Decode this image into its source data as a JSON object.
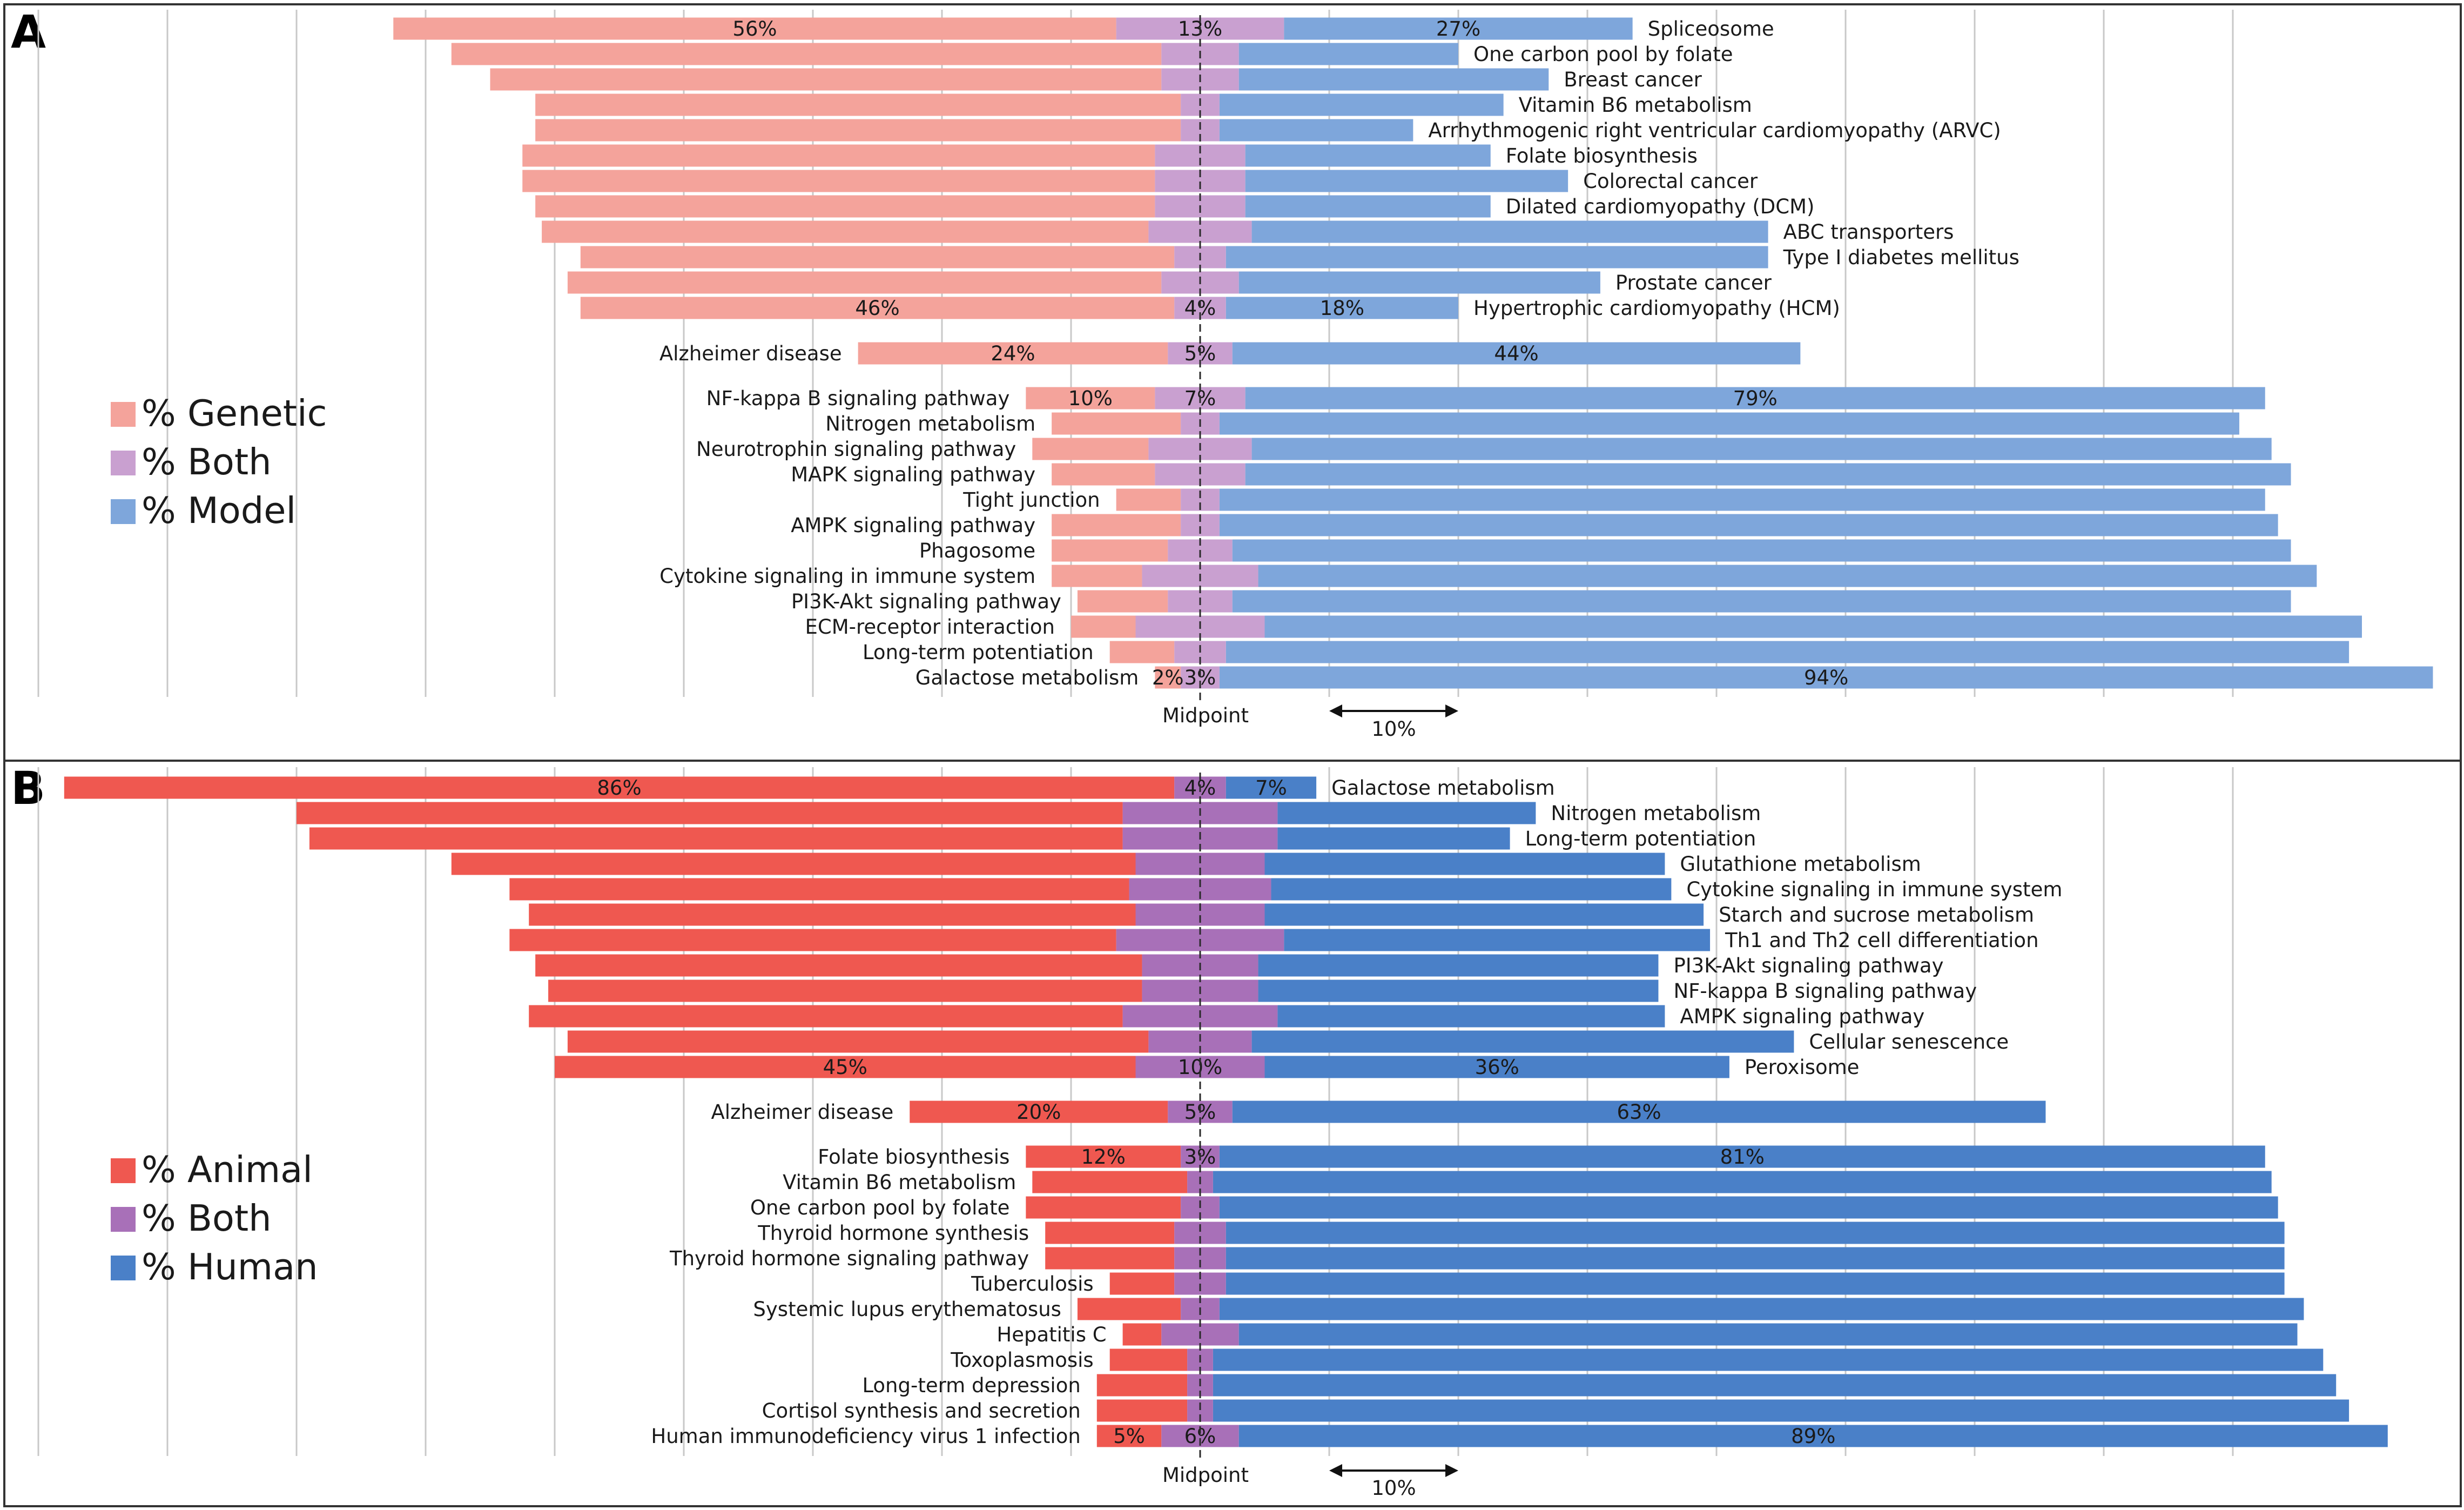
{
  "chart_data": [
    {
      "type": "bar",
      "panel": "A",
      "orientation": "horizontal-diverging",
      "midpoint_label": "Midpoint",
      "scale_label": "10%",
      "legend_placement": "left",
      "legend": [
        {
          "key": "genetic",
          "label": "% Genetic",
          "color": "#f4a39b"
        },
        {
          "key": "both",
          "label": "% Both",
          "color": "#c9a0d0"
        },
        {
          "key": "model",
          "label": "% Model",
          "color": "#7ea6db"
        }
      ],
      "groups": [
        {
          "name": "genetic-dominant",
          "rows": [
            {
              "category": "Spliceosome",
              "genetic": 56,
              "both": 13,
              "model": 27,
              "labels": [
                "56%",
                "13%",
                "27%"
              ]
            },
            {
              "category": "One carbon pool by folate",
              "genetic": 55,
              "both": 6,
              "model": 17,
              "labels": null
            },
            {
              "category": "Breast cancer",
              "genetic": 52,
              "both": 6,
              "model": 24,
              "labels": null
            },
            {
              "category": "Vitamin B6 metabolism",
              "genetic": 50,
              "both": 3,
              "model": 22,
              "labels": null
            },
            {
              "category": "Arrhythmogenic right ventricular cardiomyopathy (ARVC)",
              "genetic": 50,
              "both": 3,
              "model": 15,
              "labels": null
            },
            {
              "category": "Folate biosynthesis",
              "genetic": 49,
              "both": 7,
              "model": 19,
              "labels": null
            },
            {
              "category": "Colorectal cancer",
              "genetic": 49,
              "both": 7,
              "model": 25,
              "labels": null
            },
            {
              "category": "Dilated cardiomyopathy (DCM)",
              "genetic": 48,
              "both": 7,
              "model": 19,
              "labels": null
            },
            {
              "category": "ABC transporters",
              "genetic": 47,
              "both": 8,
              "model": 40,
              "labels": null
            },
            {
              "category": "Type I diabetes mellitus",
              "genetic": 46,
              "both": 4,
              "model": 42,
              "labels": null
            },
            {
              "category": "Prostate cancer",
              "genetic": 46,
              "both": 6,
              "model": 28,
              "labels": null
            },
            {
              "category": "Hypertrophic cardiomyopathy (HCM)",
              "genetic": 46,
              "both": 4,
              "model": 18,
              "labels": [
                "46%",
                "4%",
                "18%"
              ]
            }
          ]
        },
        {
          "name": "middle",
          "rows": [
            {
              "category": "Alzheimer disease",
              "genetic": 24,
              "both": 5,
              "model": 44,
              "labels": [
                "24%",
                "5%",
                "44%"
              ]
            }
          ]
        },
        {
          "name": "model-dominant",
          "rows": [
            {
              "category": "NF-kappa B signaling pathway",
              "genetic": 10,
              "both": 7,
              "model": 79,
              "labels": [
                "10%",
                "7%",
                "79%"
              ]
            },
            {
              "category": "Nitrogen metabolism",
              "genetic": 10,
              "both": 3,
              "model": 79,
              "labels": null
            },
            {
              "category": "Neurotrophin signaling pathway",
              "genetic": 9,
              "both": 8,
              "model": 79,
              "labels": null
            },
            {
              "category": "MAPK signaling pathway",
              "genetic": 8,
              "both": 7,
              "model": 81,
              "labels": null
            },
            {
              "category": "Tight junction",
              "genetic": 5,
              "both": 3,
              "model": 81,
              "labels": null
            },
            {
              "category": "AMPK signaling pathway",
              "genetic": 10,
              "both": 3,
              "model": 82,
              "labels": null
            },
            {
              "category": "Phagosome",
              "genetic": 9,
              "both": 5,
              "model": 82,
              "labels": null
            },
            {
              "category": "Cytokine signaling in immune system",
              "genetic": 7,
              "both": 9,
              "model": 82,
              "labels": null
            },
            {
              "category": "PI3K-Akt signaling pathway",
              "genetic": 7,
              "both": 5,
              "model": 82,
              "labels": null
            },
            {
              "category": "ECM-receptor interaction",
              "genetic": 5,
              "both": 10,
              "model": 85,
              "labels": null
            },
            {
              "category": "Long-term potentiation",
              "genetic": 5,
              "both": 4,
              "model": 87,
              "labels": null
            },
            {
              "category": "Galactose metabolism",
              "genetic": 2,
              "both": 3,
              "model": 94,
              "labels": [
                "2%",
                "3%",
                "94%"
              ]
            }
          ]
        }
      ]
    },
    {
      "type": "bar",
      "panel": "B",
      "orientation": "horizontal-diverging",
      "midpoint_label": "Midpoint",
      "scale_label": "10%",
      "legend_placement": "left",
      "legend": [
        {
          "key": "animal",
          "label": "% Animal",
          "color": "#ef5850"
        },
        {
          "key": "both",
          "label": "% Both",
          "color": "#a870b8"
        },
        {
          "key": "human",
          "label": "% Human",
          "color": "#4a80c8"
        }
      ],
      "groups": [
        {
          "name": "animal-dominant",
          "rows": [
            {
              "category": "Galactose metabolism",
              "animal": 86,
              "both": 4,
              "human": 7,
              "labels": [
                "86%",
                "4%",
                "7%"
              ]
            },
            {
              "category": "Nitrogen metabolism",
              "animal": 64,
              "both": 12,
              "human": 20,
              "labels": null
            },
            {
              "category": "Long-term potentiation",
              "animal": 63,
              "both": 12,
              "human": 18,
              "labels": null
            },
            {
              "category": "Glutathione metabolism",
              "animal": 53,
              "both": 10,
              "human": 31,
              "labels": null
            },
            {
              "category": "Cytokine signaling in immune system",
              "animal": 48,
              "both": 11,
              "human": 31,
              "labels": null
            },
            {
              "category": "Starch and sucrose metabolism",
              "animal": 47,
              "both": 10,
              "human": 34,
              "labels": null
            },
            {
              "category": "Th1 and Th2 cell differentiation",
              "animal": 47,
              "both": 13,
              "human": 33,
              "labels": null
            },
            {
              "category": "PI3K-Akt signaling pathway",
              "animal": 47,
              "both": 9,
              "human": 31,
              "labels": null
            },
            {
              "category": "NF-kappa B signaling pathway",
              "animal": 46,
              "both": 9,
              "human": 31,
              "labels": null
            },
            {
              "category": "AMPK signaling pathway",
              "animal": 46,
              "both": 12,
              "human": 30,
              "labels": null
            },
            {
              "category": "Cellular senescence",
              "animal": 45,
              "both": 8,
              "human": 42,
              "labels": null
            },
            {
              "category": "Peroxisome",
              "animal": 45,
              "both": 10,
              "human": 36,
              "labels": [
                "45%",
                "10%",
                "36%"
              ]
            }
          ]
        },
        {
          "name": "middle",
          "rows": [
            {
              "category": "Alzheimer disease",
              "animal": 20,
              "both": 5,
              "human": 63,
              "labels": [
                "20%",
                "5%",
                "63%"
              ]
            }
          ]
        },
        {
          "name": "human-dominant",
          "rows": [
            {
              "category": "Folate biosynthesis",
              "animal": 12,
              "both": 3,
              "human": 81,
              "labels": [
                "12%",
                "3%",
                "81%"
              ]
            },
            {
              "category": "Vitamin B6 metabolism",
              "animal": 12,
              "both": 2,
              "human": 82,
              "labels": null
            },
            {
              "category": "One carbon pool by folate",
              "animal": 12,
              "both": 3,
              "human": 82,
              "labels": null
            },
            {
              "category": "Thyroid hormone synthesis",
              "animal": 10,
              "both": 4,
              "human": 82,
              "labels": null
            },
            {
              "category": "Thyroid hormone signaling pathway",
              "animal": 10,
              "both": 4,
              "human": 82,
              "labels": null
            },
            {
              "category": "Tuberculosis",
              "animal": 5,
              "both": 4,
              "human": 82,
              "labels": null
            },
            {
              "category": "Systemic lupus erythematosus",
              "animal": 8,
              "both": 3,
              "human": 84,
              "labels": null
            },
            {
              "category": "Hepatitis C",
              "animal": 3,
              "both": 6,
              "human": 82,
              "labels": null
            },
            {
              "category": "Toxoplasmosis",
              "animal": 6,
              "both": 2,
              "human": 86,
              "labels": null
            },
            {
              "category": "Long-term depression",
              "animal": 7,
              "both": 2,
              "human": 87,
              "labels": null
            },
            {
              "category": "Cortisol synthesis and secretion",
              "animal": 7,
              "both": 2,
              "human": 88,
              "labels": null
            },
            {
              "category": "Human immunodeficiency virus 1 infection",
              "animal": 5,
              "both": 6,
              "human": 89,
              "labels": [
                "5%",
                "6%",
                "89%"
              ]
            }
          ]
        }
      ]
    }
  ]
}
